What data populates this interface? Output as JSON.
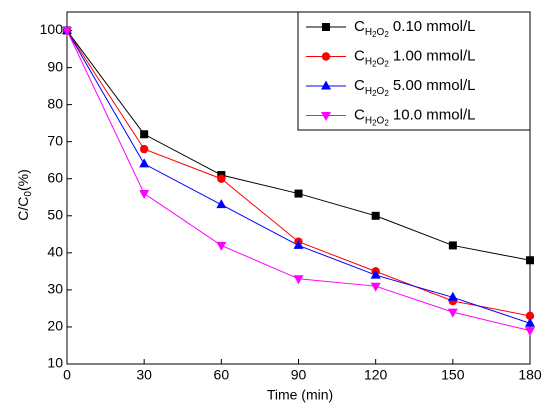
{
  "chart_data": {
    "type": "line",
    "x": [
      0,
      30,
      60,
      90,
      120,
      150,
      180
    ],
    "xlabel": "Time (min)",
    "ylabel": "C/C0(%)",
    "xlim": [
      0,
      180
    ],
    "xticks": [
      0,
      30,
      60,
      90,
      120,
      150,
      180
    ],
    "ylim": [
      10,
      105
    ],
    "yticks": [
      10,
      20,
      30,
      40,
      50,
      60,
      70,
      80,
      90,
      100
    ],
    "grid": false,
    "legend": "upper right",
    "series": [
      {
        "name": "CH2O2 0.10 mmol/L",
        "color": "#000000",
        "marker": "square",
        "values": [
          100,
          72,
          61,
          56,
          50,
          42,
          38
        ]
      },
      {
        "name": "CH2O2 1.00 mmol/L",
        "color": "#ff0000",
        "marker": "circle",
        "values": [
          100,
          68,
          60,
          43,
          35,
          27,
          23
        ]
      },
      {
        "name": "CH2O2 5.00 mmol/L",
        "color": "#0000ff",
        "marker": "triangle-up",
        "values": [
          100,
          64,
          53,
          42,
          34,
          28,
          21
        ]
      },
      {
        "name": "CH2O2 10.0 mmol/L",
        "color": "#ff00ff",
        "marker": "triangle-down",
        "values": [
          100,
          56,
          42,
          33,
          31,
          24,
          19
        ]
      }
    ]
  }
}
